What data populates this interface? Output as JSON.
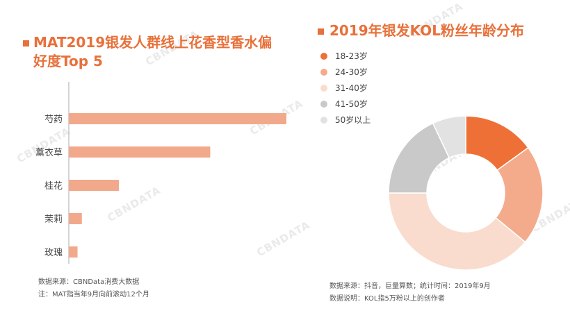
{
  "left_panel": {
    "title": "MAT2019银发人群线上花香型香水偏好度Top 5",
    "notes": [
      "数据来源：CBNData消费大数据",
      "注：MAT指当年9月向前滚动12个月"
    ]
  },
  "right_panel": {
    "title": "2019年银发KOL粉丝年龄分布",
    "notes": [
      "数据来源：抖音，巨量算数；统计时间：2019年9月",
      "数据说明：KOL指5万粉以上的创作者"
    ]
  },
  "watermark_text": "CBNDATA",
  "chart_data": [
    {
      "type": "bar",
      "orientation": "horizontal",
      "categories": [
        "芍药",
        "薰衣草",
        "桂花",
        "茉莉",
        "玫瑰"
      ],
      "values": [
        100,
        65,
        23,
        6,
        4
      ],
      "xlim": [
        0,
        100
      ],
      "grid": false,
      "color": "#f2a98b",
      "title": "MAT2019银发人群线上花香型香水偏好度Top 5"
    },
    {
      "type": "pie",
      "donut": true,
      "title": "2019年银发KOL粉丝年龄分布",
      "legend_position": "top-left",
      "labels": [
        "18-23岁",
        "24-30岁",
        "31-40岁",
        "41-50岁",
        "50岁以上"
      ],
      "values": [
        15,
        21,
        39,
        18,
        7
      ],
      "colors": [
        "#ee7036",
        "#f4ab8c",
        "#f9dccd",
        "#c9c9c9",
        "#e2e2e2"
      ]
    }
  ]
}
